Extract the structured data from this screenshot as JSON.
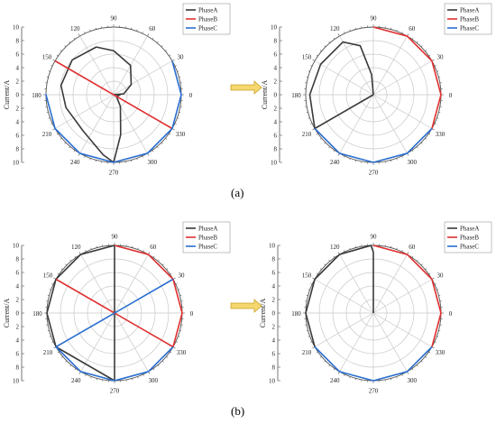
{
  "panel_labels": [
    "(a)",
    "(b)"
  ],
  "legend_entries": [
    "PhaseA",
    "PhaseB",
    "PhaseC"
  ],
  "colors": {
    "PhaseA": "#3a3a3a",
    "PhaseB": "#e03030",
    "PhaseC": "#2a6fd0",
    "grid": "#c8c8c8",
    "arrow_fill": "#f5d76e",
    "arrow_stroke": "#c9a22a"
  },
  "axis": {
    "ylabel": "Current/A",
    "rmax": 10,
    "angle_ticks": [
      "0",
      "30",
      "60",
      "90",
      "120",
      "150",
      "180",
      "210",
      "240",
      "270",
      "300",
      "330"
    ],
    "radial_ticks": [
      "0",
      "2",
      "4",
      "6",
      "8",
      "10"
    ]
  },
  "chart_data": [
    {
      "type": "polar-line",
      "panel": "(a)",
      "position": "left",
      "series": [
        {
          "name": "PhaseA",
          "points": [
            [
              0,
              1
            ],
            [
              -30,
              0.5
            ],
            [
              -60,
              2
            ],
            [
              -80,
              6
            ],
            [
              -90,
              10
            ],
            [
              -100,
              9
            ],
            [
              -130,
              7
            ],
            [
              -165,
              7.3
            ],
            [
              -190,
              7.9
            ],
            [
              -220,
              8
            ],
            [
              -250,
              7.5
            ],
            [
              -270,
              6.5
            ],
            [
              -300,
              5
            ],
            [
              -330,
              3
            ],
            [
              -355,
              1.5
            ],
            [
              0,
              0
            ]
          ]
        },
        {
          "name": "PhaseB",
          "points": [
            [
              150,
              10
            ],
            [
              330,
              10
            ]
          ]
        },
        {
          "name": "PhaseC",
          "points": [
            [
              30,
              10
            ],
            [
              0,
              10
            ],
            [
              -30,
              10
            ],
            [
              -60,
              10
            ],
            [
              -90,
              10
            ],
            [
              -120,
              10
            ],
            [
              -150,
              10
            ],
            [
              -180,
              10
            ],
            [
              210,
              10
            ]
          ]
        }
      ]
    },
    {
      "type": "polar-line",
      "panel": "(a)",
      "position": "right",
      "series": [
        {
          "name": "PhaseA",
          "points": [
            [
              0,
              0
            ],
            [
              210,
              10
            ],
            [
              180,
              9.4
            ],
            [
              150,
              9
            ],
            [
              120,
              9
            ],
            [
              105,
              7.5
            ],
            [
              95,
              3
            ],
            [
              90,
              0
            ]
          ]
        },
        {
          "name": "PhaseB",
          "points": [
            [
              90,
              10
            ],
            [
              60,
              10
            ],
            [
              30,
              10
            ],
            [
              0,
              10
            ],
            [
              -30,
              10
            ]
          ]
        },
        {
          "name": "PhaseC",
          "points": [
            [
              210,
              10
            ],
            [
              240,
              10
            ],
            [
              270,
              10
            ],
            [
              300,
              10
            ],
            [
              330,
              10
            ]
          ]
        }
      ]
    },
    {
      "type": "polar-line",
      "panel": "(b)",
      "position": "left",
      "series": [
        {
          "name": "PhaseA",
          "points": [
            [
              90,
              10
            ],
            [
              120,
              10
            ],
            [
              150,
              10
            ],
            [
              180,
              10
            ],
            [
              210,
              10
            ],
            [
              270,
              10
            ],
            [
              90,
              10
            ]
          ]
        },
        {
          "name": "PhaseB",
          "points": [
            [
              90,
              10
            ],
            [
              60,
              10
            ],
            [
              30,
              10
            ],
            [
              0,
              10
            ],
            [
              -30,
              10
            ],
            [
              150,
              10
            ]
          ]
        },
        {
          "name": "PhaseC",
          "points": [
            [
              30,
              10
            ],
            [
              210,
              10
            ],
            [
              240,
              10
            ],
            [
              270,
              10
            ],
            [
              300,
              10
            ],
            [
              330,
              10
            ]
          ]
        }
      ]
    },
    {
      "type": "polar-line",
      "panel": "(b)",
      "position": "right",
      "series": [
        {
          "name": "PhaseA",
          "points": [
            [
              0,
              0
            ],
            [
              90,
              9
            ],
            [
              92,
              10
            ],
            [
              120,
              10
            ],
            [
              150,
              10
            ],
            [
              180,
              10
            ],
            [
              210,
              10
            ]
          ]
        },
        {
          "name": "PhaseB",
          "points": [
            [
              90,
              10
            ],
            [
              60,
              10
            ],
            [
              30,
              10
            ],
            [
              0,
              10
            ],
            [
              -30,
              10
            ]
          ]
        },
        {
          "name": "PhaseC",
          "points": [
            [
              210,
              10
            ],
            [
              240,
              10
            ],
            [
              270,
              10
            ],
            [
              300,
              10
            ],
            [
              330,
              10
            ]
          ]
        }
      ]
    }
  ]
}
